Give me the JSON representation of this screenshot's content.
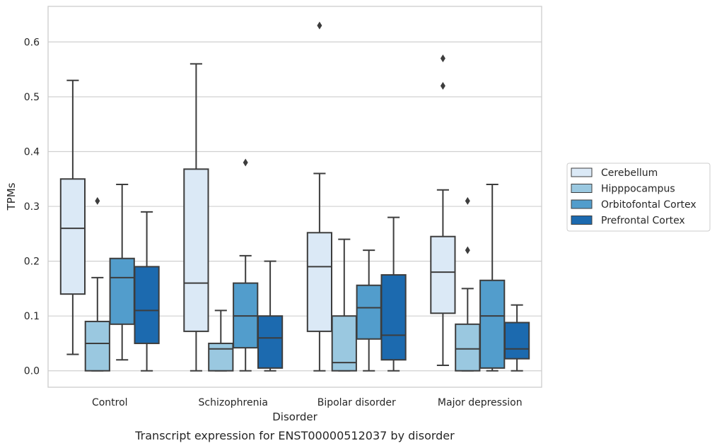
{
  "chart_data": {
    "type": "boxplot",
    "caption": "Transcript expression for ENST00000512037 by disorder",
    "xlabel": "Disorder",
    "ylabel": "TPMs",
    "ylim": [
      -0.03,
      0.665
    ],
    "yticks": [
      0.0,
      0.1,
      0.2,
      0.3,
      0.4,
      0.5,
      0.6
    ],
    "ytick_labels": [
      "0.0",
      "0.1",
      "0.2",
      "0.3",
      "0.4",
      "0.5",
      "0.6"
    ],
    "grid": "horizontal",
    "legend_position": "right",
    "categories": [
      "Control",
      "Schizophrenia",
      "Bipolar disorder",
      "Major depression"
    ],
    "series": [
      {
        "name": "Cerebellum",
        "color": "#dbe9f6",
        "boxes": [
          {
            "whislo": 0.03,
            "q1": 0.14,
            "med": 0.26,
            "q3": 0.35,
            "whishi": 0.53,
            "fliers": []
          },
          {
            "whislo": 0.0,
            "q1": 0.072,
            "med": 0.16,
            "q3": 0.368,
            "whishi": 0.56,
            "fliers": []
          },
          {
            "whislo": 0.0,
            "q1": 0.072,
            "med": 0.19,
            "q3": 0.252,
            "whishi": 0.36,
            "fliers": [
              0.63
            ]
          },
          {
            "whislo": 0.01,
            "q1": 0.105,
            "med": 0.18,
            "q3": 0.245,
            "whishi": 0.33,
            "fliers": [
              0.52,
              0.57
            ]
          }
        ]
      },
      {
        "name": "Hipppocampus",
        "color": "#9ac8e0",
        "boxes": [
          {
            "whislo": 0.0,
            "q1": 0.0,
            "med": 0.05,
            "q3": 0.09,
            "whishi": 0.17,
            "fliers": [
              0.31
            ]
          },
          {
            "whislo": 0.0,
            "q1": 0.0,
            "med": 0.04,
            "q3": 0.05,
            "whishi": 0.11,
            "fliers": []
          },
          {
            "whislo": 0.0,
            "q1": 0.0,
            "med": 0.015,
            "q3": 0.1,
            "whishi": 0.24,
            "fliers": []
          },
          {
            "whislo": 0.0,
            "q1": 0.0,
            "med": 0.04,
            "q3": 0.085,
            "whishi": 0.15,
            "fliers": [
              0.22,
              0.31
            ]
          }
        ]
      },
      {
        "name": "Orbitofontal Cortex",
        "color": "#529dcc",
        "boxes": [
          {
            "whislo": 0.02,
            "q1": 0.085,
            "med": 0.17,
            "q3": 0.205,
            "whishi": 0.34,
            "fliers": []
          },
          {
            "whislo": 0.0,
            "q1": 0.042,
            "med": 0.1,
            "q3": 0.16,
            "whishi": 0.21,
            "fliers": [
              0.38
            ]
          },
          {
            "whislo": 0.0,
            "q1": 0.058,
            "med": 0.115,
            "q3": 0.156,
            "whishi": 0.22,
            "fliers": []
          },
          {
            "whislo": 0.0,
            "q1": 0.005,
            "med": 0.1,
            "q3": 0.165,
            "whishi": 0.34,
            "fliers": []
          }
        ]
      },
      {
        "name": "Prefrontal Cortex",
        "color": "#1c6aaf",
        "boxes": [
          {
            "whislo": 0.0,
            "q1": 0.05,
            "med": 0.11,
            "q3": 0.19,
            "whishi": 0.29,
            "fliers": []
          },
          {
            "whislo": 0.0,
            "q1": 0.005,
            "med": 0.06,
            "q3": 0.1,
            "whishi": 0.2,
            "fliers": []
          },
          {
            "whislo": 0.0,
            "q1": 0.02,
            "med": 0.065,
            "q3": 0.175,
            "whishi": 0.28,
            "fliers": []
          },
          {
            "whislo": 0.0,
            "q1": 0.022,
            "med": 0.04,
            "q3": 0.088,
            "whishi": 0.12,
            "fliers": []
          }
        ]
      }
    ]
  }
}
